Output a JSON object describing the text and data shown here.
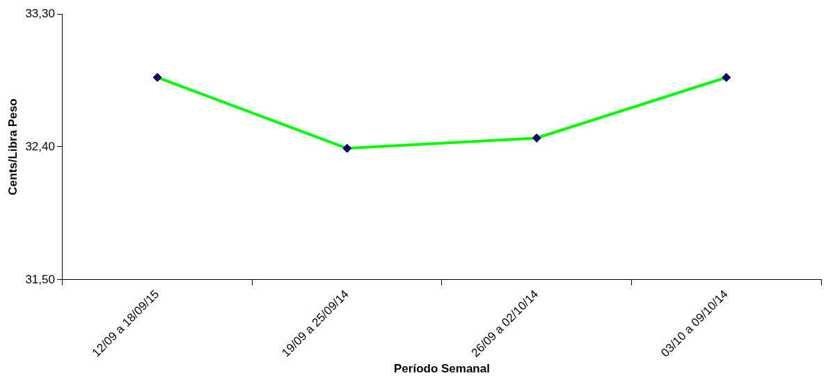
{
  "chart_data": {
    "type": "line",
    "xlabel": "Período Semanal",
    "ylabel": "Cents/Libra Peso",
    "categories": [
      "12/09 a 18/09/15",
      "19/09 a 25/09/14",
      "26/09 a 02/10/14",
      "03/10 a 09/10/14"
    ],
    "series": [
      {
        "color": "#00ff00",
        "values": [
          32.87,
          32.39,
          32.46,
          32.87
        ]
      }
    ],
    "ylim": [
      31.5,
      33.3
    ],
    "yticks": [
      {
        "value": 31.5,
        "label": "31,50"
      },
      {
        "value": 32.4,
        "label": "32,40"
      },
      {
        "value": 33.3,
        "label": "33,30"
      }
    ],
    "grid": false,
    "legend": false,
    "marker": "diamond",
    "line_style": "solid"
  }
}
